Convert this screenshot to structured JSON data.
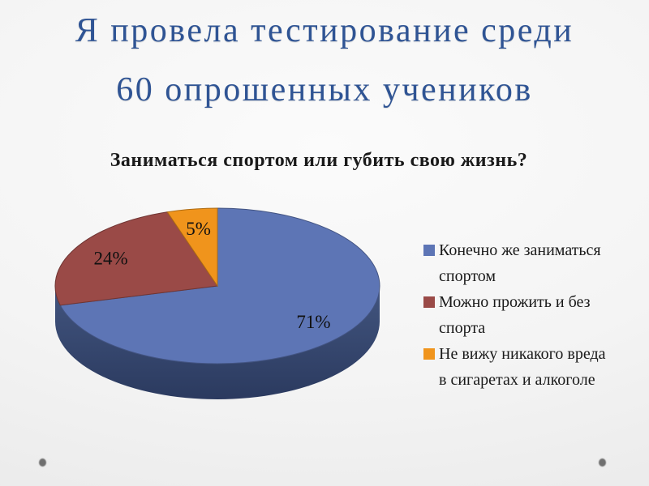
{
  "slide": {
    "title": {
      "line1": "Я провела тестирование среди",
      "line2": "60 опрошенных учеников",
      "color": "#2F5494"
    },
    "footer_dot_color": "#6F6F6F"
  },
  "chart_data": {
    "type": "pie",
    "is_3d": true,
    "title": "Заниматься спортом или губить свою жизнь?",
    "direction": "clockwise",
    "start_angle_deg": 0,
    "legend_position": "right",
    "slices": [
      {
        "label": "Конечно же заниматься спортом",
        "value_pct": 71,
        "data_label": "71%",
        "color": "#5D75B5",
        "legend_lines": [
          "Конечно же заниматься",
          "спортом"
        ]
      },
      {
        "label": "Можно прожить и без спорта",
        "value_pct": 24,
        "data_label": "24%",
        "color": "#9A4A47",
        "legend_lines": [
          "Можно прожить и без",
          "спорта"
        ]
      },
      {
        "label": "Не вижу никакого вреда в сигаретах и алкоголе",
        "value_pct": 5,
        "data_label": "5%",
        "color": "#F0941C",
        "legend_lines": [
          "Не вижу никакого вреда",
          "в сигаретах и алкоголе"
        ]
      }
    ],
    "side_gradient": [
      "#42557F",
      "#2B3A5F"
    ],
    "data_label_color": "#111111"
  }
}
